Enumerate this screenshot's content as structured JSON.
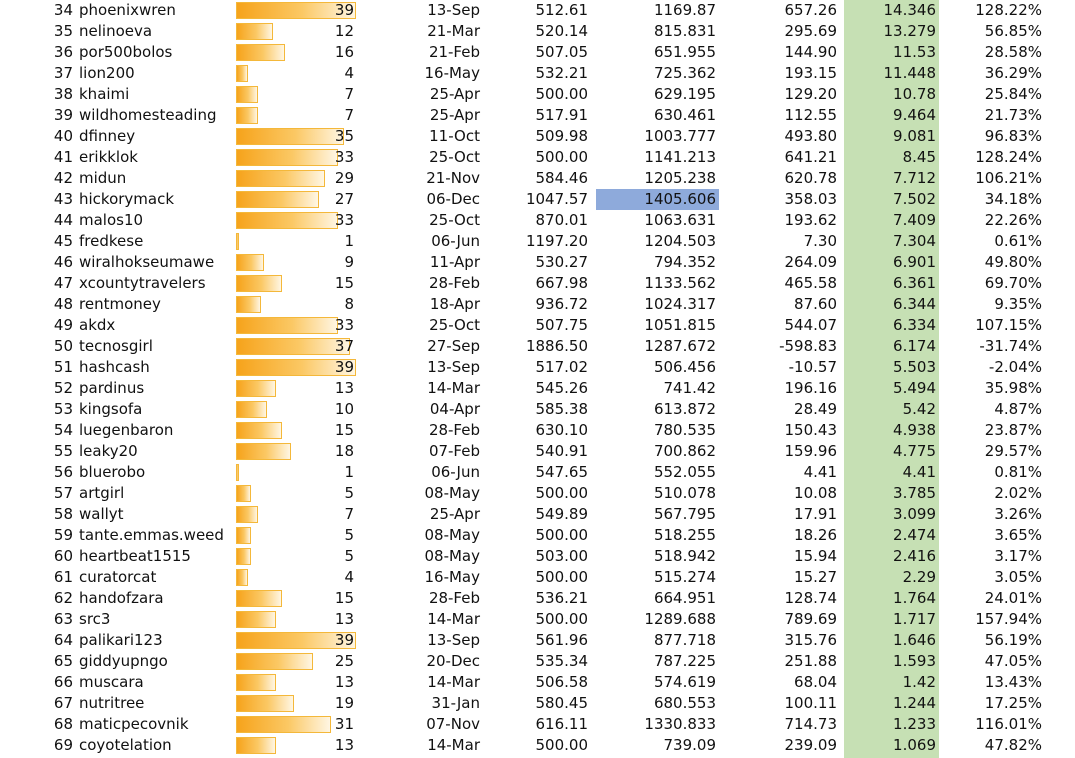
{
  "colors": {
    "score_column_fill": "#c6e0b4",
    "selected_cell_fill": "#8eaadb",
    "bar_start": "#f6a31b",
    "bar_border": "#f4b83a"
  },
  "bar_scale_max": 39,
  "rows": [
    {
      "rank": "34",
      "name": "phoenixwren",
      "count": "39",
      "date": "13-Sep",
      "v1": "512.61",
      "v2": "1169.87",
      "diff": "657.26",
      "score": "14.346",
      "pct": "128.22%"
    },
    {
      "rank": "35",
      "name": "nelinoeva",
      "count": "12",
      "date": "21-Mar",
      "v1": "520.14",
      "v2": "815.831",
      "diff": "295.69",
      "score": "13.279",
      "pct": "56.85%"
    },
    {
      "rank": "36",
      "name": "por500bolos",
      "count": "16",
      "date": "21-Feb",
      "v1": "507.05",
      "v2": "651.955",
      "diff": "144.90",
      "score": "11.53",
      "pct": "28.58%"
    },
    {
      "rank": "37",
      "name": "lion200",
      "count": "4",
      "date": "16-May",
      "v1": "532.21",
      "v2": "725.362",
      "diff": "193.15",
      "score": "11.448",
      "pct": "36.29%"
    },
    {
      "rank": "38",
      "name": "khaimi",
      "count": "7",
      "date": "25-Apr",
      "v1": "500.00",
      "v2": "629.195",
      "diff": "129.20",
      "score": "10.78",
      "pct": "25.84%"
    },
    {
      "rank": "39",
      "name": "wildhomesteading",
      "count": "7",
      "date": "25-Apr",
      "v1": "517.91",
      "v2": "630.461",
      "diff": "112.55",
      "score": "9.464",
      "pct": "21.73%"
    },
    {
      "rank": "40",
      "name": "dfinney",
      "count": "35",
      "date": "11-Oct",
      "v1": "509.98",
      "v2": "1003.777",
      "diff": "493.80",
      "score": "9.081",
      "pct": "96.83%"
    },
    {
      "rank": "41",
      "name": "erikklok",
      "count": "33",
      "date": "25-Oct",
      "v1": "500.00",
      "v2": "1141.213",
      "diff": "641.21",
      "score": "8.45",
      "pct": "128.24%"
    },
    {
      "rank": "42",
      "name": "midun",
      "count": "29",
      "date": "21-Nov",
      "v1": "584.46",
      "v2": "1205.238",
      "diff": "620.78",
      "score": "7.712",
      "pct": "106.21%"
    },
    {
      "rank": "43",
      "name": "hickorymack",
      "count": "27",
      "date": "06-Dec",
      "v1": "1047.57",
      "v2": "1405.606",
      "diff": "358.03",
      "score": "7.502",
      "pct": "34.18%",
      "selected": true
    },
    {
      "rank": "44",
      "name": "malos10",
      "count": "33",
      "date": "25-Oct",
      "v1": "870.01",
      "v2": "1063.631",
      "diff": "193.62",
      "score": "7.409",
      "pct": "22.26%"
    },
    {
      "rank": "45",
      "name": "fredkese",
      "count": "1",
      "date": "06-Jun",
      "v1": "1197.20",
      "v2": "1204.503",
      "diff": "7.30",
      "score": "7.304",
      "pct": "0.61%"
    },
    {
      "rank": "46",
      "name": "wiralhokseumawe",
      "count": "9",
      "date": "11-Apr",
      "v1": "530.27",
      "v2": "794.352",
      "diff": "264.09",
      "score": "6.901",
      "pct": "49.80%"
    },
    {
      "rank": "47",
      "name": "xcountytravelers",
      "count": "15",
      "date": "28-Feb",
      "v1": "667.98",
      "v2": "1133.562",
      "diff": "465.58",
      "score": "6.361",
      "pct": "69.70%"
    },
    {
      "rank": "48",
      "name": "rentmoney",
      "count": "8",
      "date": "18-Apr",
      "v1": "936.72",
      "v2": "1024.317",
      "diff": "87.60",
      "score": "6.344",
      "pct": "9.35%"
    },
    {
      "rank": "49",
      "name": "akdx",
      "count": "33",
      "date": "25-Oct",
      "v1": "507.75",
      "v2": "1051.815",
      "diff": "544.07",
      "score": "6.334",
      "pct": "107.15%"
    },
    {
      "rank": "50",
      "name": "tecnosgirl",
      "count": "37",
      "date": "27-Sep",
      "v1": "1886.50",
      "v2": "1287.672",
      "diff": "-598.83",
      "score": "6.174",
      "pct": "-31.74%"
    },
    {
      "rank": "51",
      "name": "hashcash",
      "count": "39",
      "date": "13-Sep",
      "v1": "517.02",
      "v2": "506.456",
      "diff": "-10.57",
      "score": "5.503",
      "pct": "-2.04%"
    },
    {
      "rank": "52",
      "name": "pardinus",
      "count": "13",
      "date": "14-Mar",
      "v1": "545.26",
      "v2": "741.42",
      "diff": "196.16",
      "score": "5.494",
      "pct": "35.98%"
    },
    {
      "rank": "53",
      "name": "kingsofa",
      "count": "10",
      "date": "04-Apr",
      "v1": "585.38",
      "v2": "613.872",
      "diff": "28.49",
      "score": "5.42",
      "pct": "4.87%"
    },
    {
      "rank": "54",
      "name": "luegenbaron",
      "count": "15",
      "date": "28-Feb",
      "v1": "630.10",
      "v2": "780.535",
      "diff": "150.43",
      "score": "4.938",
      "pct": "23.87%"
    },
    {
      "rank": "55",
      "name": "leaky20",
      "count": "18",
      "date": "07-Feb",
      "v1": "540.91",
      "v2": "700.862",
      "diff": "159.96",
      "score": "4.775",
      "pct": "29.57%"
    },
    {
      "rank": "56",
      "name": "bluerobo",
      "count": "1",
      "date": "06-Jun",
      "v1": "547.65",
      "v2": "552.055",
      "diff": "4.41",
      "score": "4.41",
      "pct": "0.81%"
    },
    {
      "rank": "57",
      "name": "artgirl",
      "count": "5",
      "date": "08-May",
      "v1": "500.00",
      "v2": "510.078",
      "diff": "10.08",
      "score": "3.785",
      "pct": "2.02%"
    },
    {
      "rank": "58",
      "name": "wallyt",
      "count": "7",
      "date": "25-Apr",
      "v1": "549.89",
      "v2": "567.795",
      "diff": "17.91",
      "score": "3.099",
      "pct": "3.26%"
    },
    {
      "rank": "59",
      "name": "tante.emmas.weed",
      "count": "5",
      "date": "08-May",
      "v1": "500.00",
      "v2": "518.255",
      "diff": "18.26",
      "score": "2.474",
      "pct": "3.65%"
    },
    {
      "rank": "60",
      "name": "heartbeat1515",
      "count": "5",
      "date": "08-May",
      "v1": "503.00",
      "v2": "518.942",
      "diff": "15.94",
      "score": "2.416",
      "pct": "3.17%"
    },
    {
      "rank": "61",
      "name": "curatorcat",
      "count": "4",
      "date": "16-May",
      "v1": "500.00",
      "v2": "515.274",
      "diff": "15.27",
      "score": "2.29",
      "pct": "3.05%"
    },
    {
      "rank": "62",
      "name": "handofzara",
      "count": "15",
      "date": "28-Feb",
      "v1": "536.21",
      "v2": "664.951",
      "diff": "128.74",
      "score": "1.764",
      "pct": "24.01%"
    },
    {
      "rank": "63",
      "name": "src3",
      "count": "13",
      "date": "14-Mar",
      "v1": "500.00",
      "v2": "1289.688",
      "diff": "789.69",
      "score": "1.717",
      "pct": "157.94%"
    },
    {
      "rank": "64",
      "name": "palikari123",
      "count": "39",
      "date": "13-Sep",
      "v1": "561.96",
      "v2": "877.718",
      "diff": "315.76",
      "score": "1.646",
      "pct": "56.19%"
    },
    {
      "rank": "65",
      "name": "giddyupngo",
      "count": "25",
      "date": "20-Dec",
      "v1": "535.34",
      "v2": "787.225",
      "diff": "251.88",
      "score": "1.593",
      "pct": "47.05%"
    },
    {
      "rank": "66",
      "name": "muscara",
      "count": "13",
      "date": "14-Mar",
      "v1": "506.58",
      "v2": "574.619",
      "diff": "68.04",
      "score": "1.42",
      "pct": "13.43%"
    },
    {
      "rank": "67",
      "name": "nutritree",
      "count": "19",
      "date": "31-Jan",
      "v1": "580.45",
      "v2": "680.553",
      "diff": "100.11",
      "score": "1.244",
      "pct": "17.25%"
    },
    {
      "rank": "68",
      "name": "maticpecovnik",
      "count": "31",
      "date": "07-Nov",
      "v1": "616.11",
      "v2": "1330.833",
      "diff": "714.73",
      "score": "1.233",
      "pct": "116.01%"
    },
    {
      "rank": "69",
      "name": "coyotelation",
      "count": "13",
      "date": "14-Mar",
      "v1": "500.00",
      "v2": "739.09",
      "diff": "239.09",
      "score": "1.069",
      "pct": "47.82%"
    }
  ]
}
